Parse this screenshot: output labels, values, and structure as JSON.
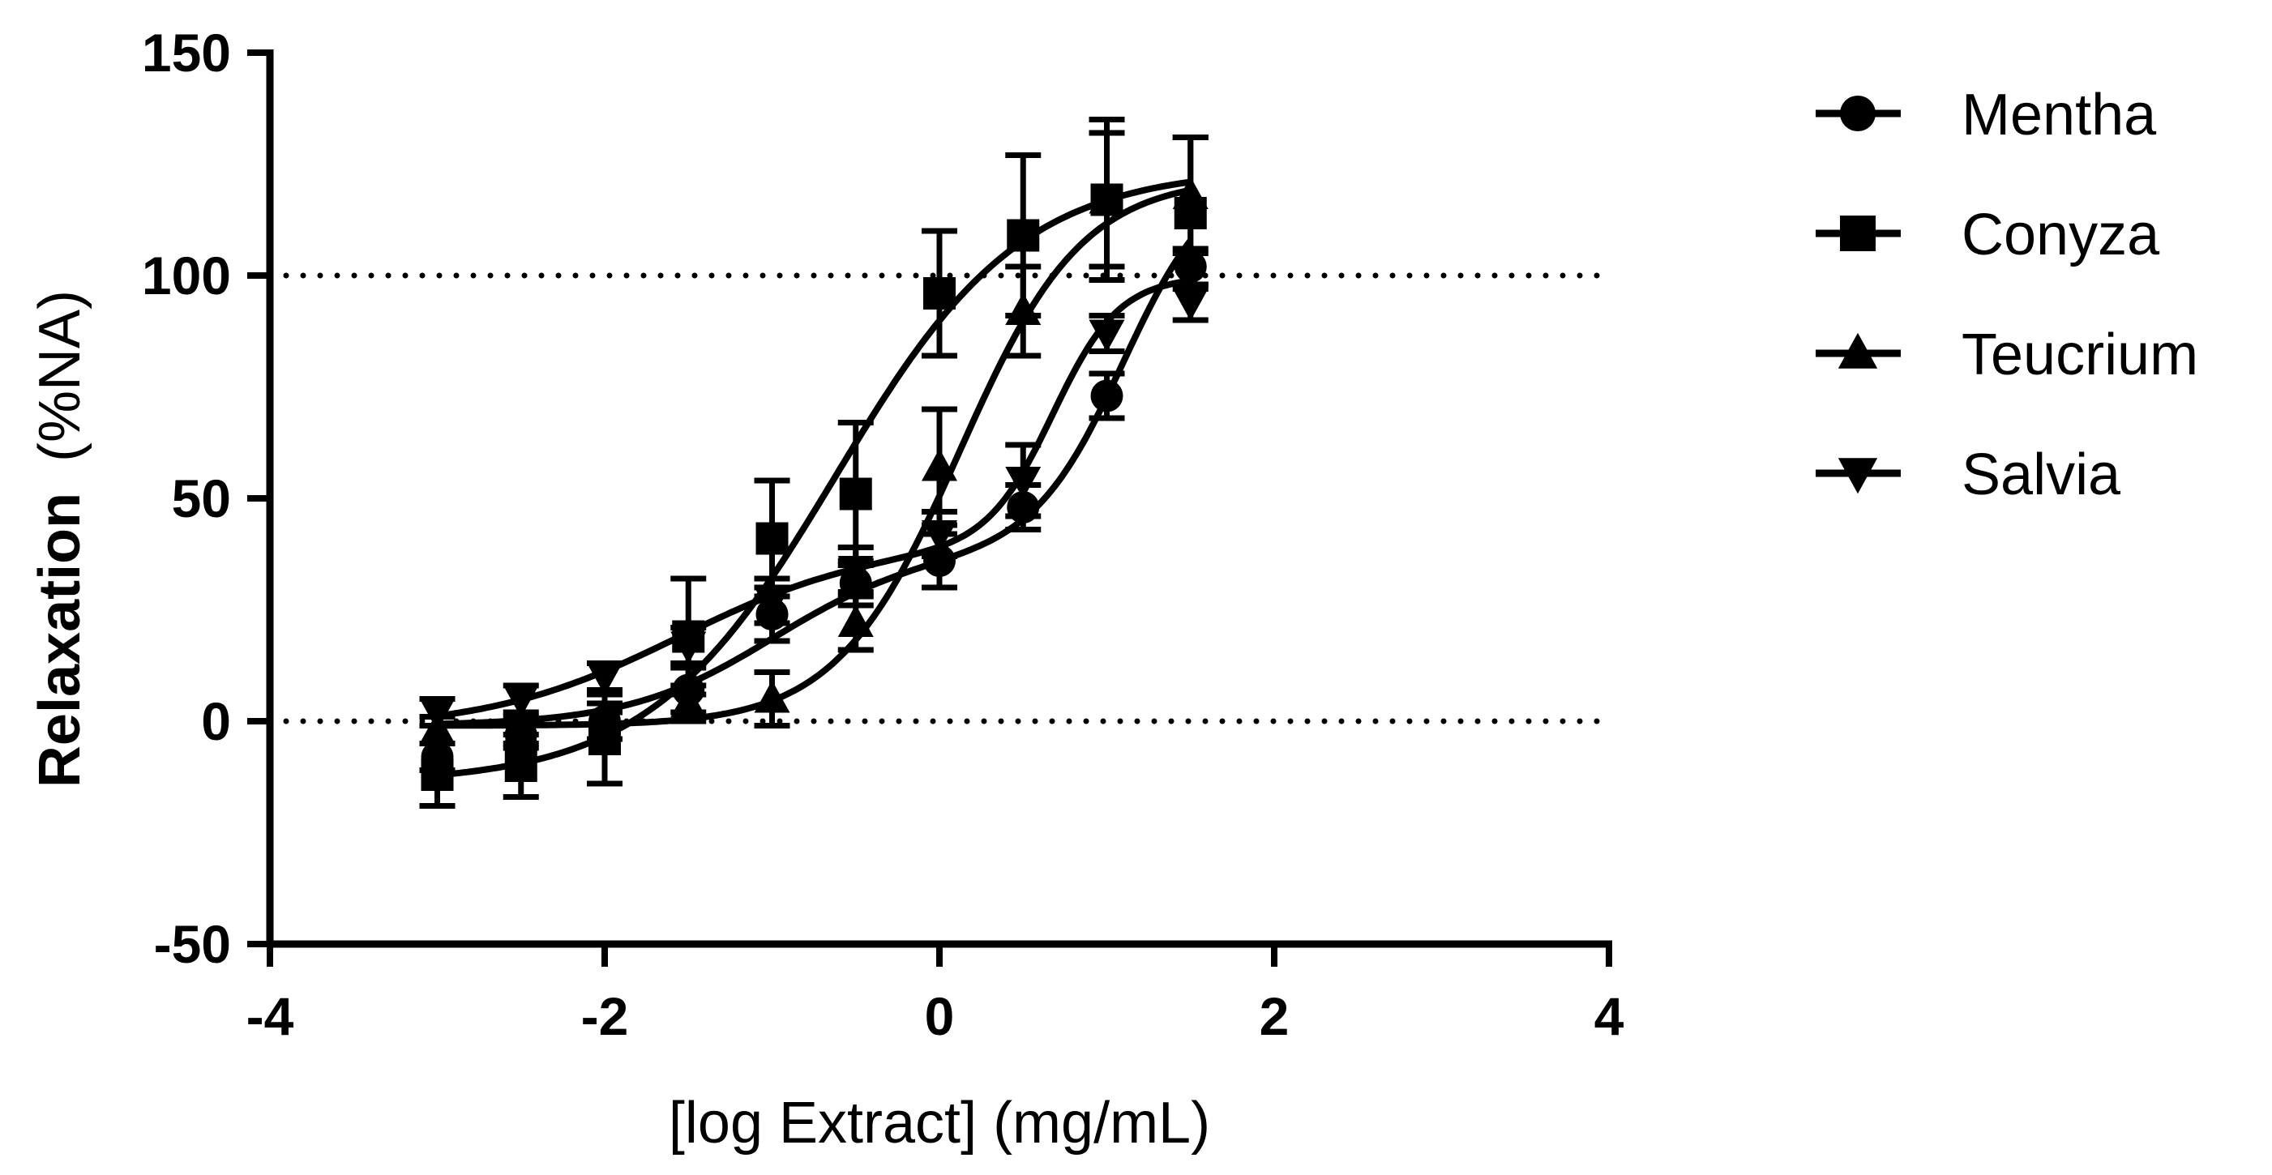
{
  "chart_data": {
    "type": "line",
    "title": "",
    "xlabel": "[log Extract] (mg/mL)",
    "ylabel_bold": "Relaxation",
    "ylabel_rest": "(%NA)",
    "xlim": [
      -4,
      4
    ],
    "ylim": [
      -50,
      150
    ],
    "x_ticks": [
      -4,
      -2,
      0,
      2,
      4
    ],
    "x_tick_labels": [
      "-4",
      "-2",
      "0",
      "2",
      "4"
    ],
    "y_ticks": [
      -50,
      0,
      50,
      100,
      150
    ],
    "y_tick_labels": [
      "-50",
      "0",
      "50",
      "100",
      "150"
    ],
    "reference_lines": [
      0,
      100
    ],
    "legend_position": "top-right",
    "series": [
      {
        "name": "Mentha",
        "marker": "circle",
        "x": [
          -3,
          -2.5,
          -2,
          -1.5,
          -1,
          -0.5,
          0,
          0.5,
          1,
          1.5
        ],
        "y": [
          -8,
          -3,
          0,
          7,
          24,
          31,
          36,
          48,
          73,
          102
        ],
        "err": [
          3,
          3,
          4,
          5,
          6,
          5,
          6,
          5,
          5,
          4
        ],
        "fit": {
          "bottom": -1,
          "top": 38,
          "ec50": -1.0,
          "hill": 1.0,
          "bottom2": 0,
          "top2": 86,
          "ec50b": 1.1,
          "hill2": 1.6
        }
      },
      {
        "name": "Conyza",
        "marker": "square",
        "x": [
          -3,
          -2.5,
          -2,
          -1.5,
          -1,
          -0.5,
          0,
          0.5,
          1,
          1.5
        ],
        "y": [
          -12,
          -10,
          -4,
          19,
          41,
          51,
          96,
          109,
          117,
          114
        ],
        "err": [
          7,
          7,
          10,
          13,
          13,
          16,
          14,
          18,
          18,
          17
        ],
        "fit": {
          "bottom": -14,
          "top": 124,
          "ec50": -0.62,
          "hill": 0.78
        }
      },
      {
        "name": "Teucrium",
        "marker": "triangle-up",
        "x": [
          -3,
          -2.5,
          -2,
          -1.5,
          -1,
          -0.5,
          0,
          0.5,
          1,
          1.5
        ],
        "y": [
          -2,
          -2,
          -1,
          4,
          5,
          22,
          57,
          92,
          117,
          118
        ],
        "err": [
          3,
          3,
          3,
          4,
          6,
          6,
          13,
          10,
          15,
          13
        ],
        "fit": {
          "bottom": -1,
          "top": 122,
          "ec50": 0.12,
          "hill": 1.18
        }
      },
      {
        "name": "Salvia",
        "marker": "triangle-down",
        "x": [
          -3,
          -2.5,
          -2,
          -1.5,
          -1,
          -0.5,
          0,
          0.5,
          1,
          1.5
        ],
        "y": [
          2,
          5,
          10,
          17,
          27,
          34,
          42,
          54,
          87,
          94
        ],
        "err": [
          3,
          3,
          3,
          4,
          5,
          5,
          5,
          8,
          4,
          4
        ],
        "fit": {
          "bottom": -2,
          "top": 40,
          "ec50": -1.55,
          "hill": 0.75,
          "bottom2": 0,
          "top2": 60,
          "ec50b": 0.68,
          "hill2": 2.2
        }
      }
    ]
  }
}
